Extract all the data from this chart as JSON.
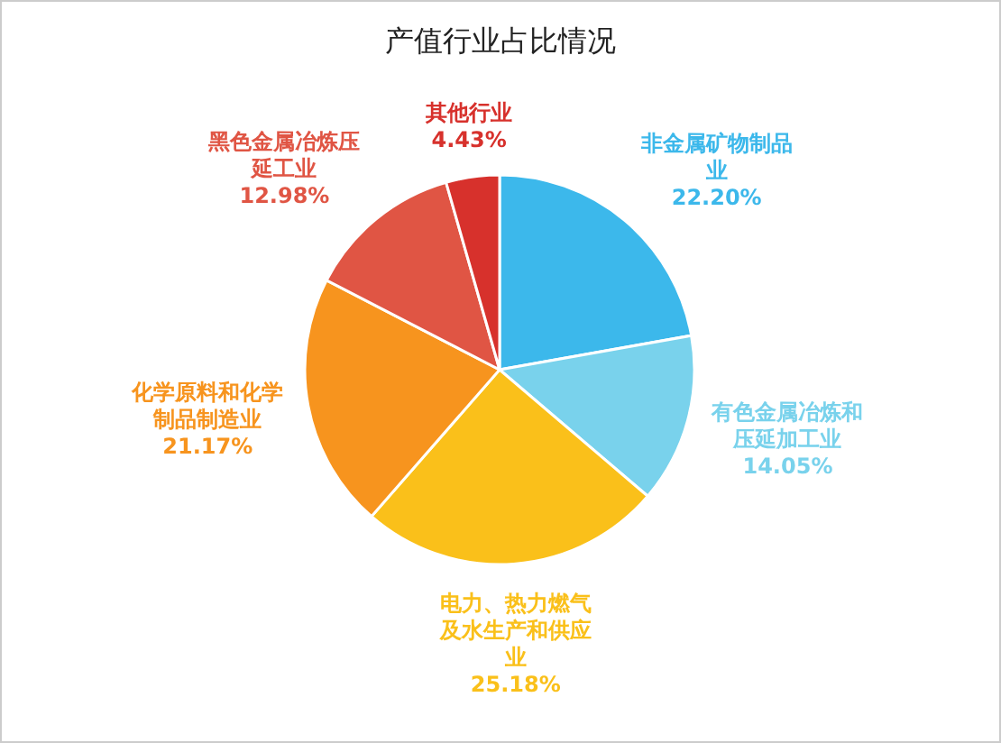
{
  "chart_data": {
    "type": "pie",
    "title": "产值行业占比情况",
    "categories": [
      "非金属矿物制品业",
      "有色金属冶炼和压延加工业",
      "电力、热力燃气及水生产和供应业",
      "化学原料和化学制品制造业",
      "黑色金属冶炼压延工业",
      "其他行业"
    ],
    "values": [
      22.2,
      14.05,
      25.18,
      21.17,
      12.98,
      4.43
    ],
    "value_labels": [
      "22.20%",
      "14.05%",
      "25.18%",
      "21.17%",
      "12.98%",
      "4.43%"
    ],
    "colors": [
      "#3cb8eb",
      "#79d2ec",
      "#fac01a",
      "#f7941e",
      "#e05544",
      "#d7312c"
    ]
  }
}
